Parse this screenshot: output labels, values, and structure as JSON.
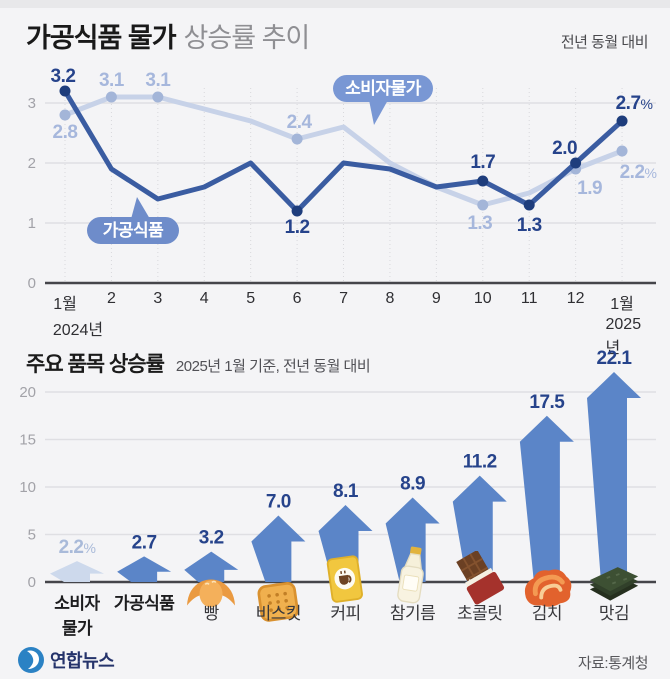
{
  "header": {
    "title_strong": "가공식품 물가",
    "title_light": "상승률 추이",
    "note": "전년 동월 대비"
  },
  "colors": {
    "background": "#f4f4f6",
    "consumer_line": "#c7d2e8",
    "consumer_dot": "#a3b5d8",
    "consumer_label": "#a6b7dc",
    "food_line": "#3a5ca1",
    "food_dot": "#1e3d7c",
    "food_label": "#26438b",
    "bar_fill": "#5b85c8",
    "bar_fill_light": "#cdd9ec",
    "callout_consumer": "#7997d4",
    "callout_food": "#6e8cca",
    "grid": "#dfdfe3",
    "axis": "#45454a"
  },
  "chart_data": [
    {
      "type": "line",
      "title": "가공식품 물가 상승률 추이",
      "subtitle": "전년 동월 대비",
      "x": [
        "1월",
        "2",
        "3",
        "4",
        "5",
        "6",
        "7",
        "8",
        "9",
        "10",
        "11",
        "12",
        "1월"
      ],
      "x_start_year": "2024년",
      "x_end_year": "2025년",
      "y_ticks": [
        0,
        1,
        2,
        3
      ],
      "ylim": [
        0,
        3.5
      ],
      "grid": "horizontal solid + vertical dotted",
      "legend_position": "callout bubbles on plot",
      "series": [
        {
          "name": "소비자물가",
          "values": [
            2.8,
            3.1,
            3.1,
            2.9,
            2.7,
            2.4,
            2.6,
            2.0,
            1.6,
            1.3,
            1.5,
            1.9,
            2.2
          ],
          "labeled_points": {
            "0": "2.8",
            "1": "3.1",
            "2": "3.1",
            "5": "2.4",
            "9": "1.3",
            "11": "1.9",
            "12": "2.2%"
          }
        },
        {
          "name": "가공식품",
          "values": [
            3.2,
            1.9,
            1.4,
            1.6,
            2.0,
            1.2,
            2.0,
            1.9,
            1.6,
            1.7,
            1.3,
            2.0,
            2.7
          ],
          "labeled_points": {
            "0": "3.2",
            "5": "1.2",
            "9": "1.7",
            "10": "1.3",
            "11": "2.0",
            "12": "2.7%"
          }
        }
      ]
    },
    {
      "type": "bar",
      "title": "주요 품목 상승률",
      "subtitle": "2025년 1월 기준, 전년 동월 대비",
      "y_ticks": [
        0,
        5,
        10,
        15,
        20
      ],
      "ylim": [
        0,
        22.5
      ],
      "bar_style": "upward arrows",
      "items": [
        {
          "label": "소비자 물가",
          "lines": [
            "소비자",
            "물가"
          ],
          "value": 2.2,
          "display": "2.2%",
          "light": true,
          "bold": true
        },
        {
          "label": "가공식품",
          "value": 2.7,
          "display": "2.7",
          "bold": true
        },
        {
          "label": "빵",
          "value": 3.2,
          "display": "3.2",
          "icon": "bread-icon"
        },
        {
          "label": "비스킷",
          "value": 7.0,
          "display": "7.0",
          "icon": "biscuit-icon"
        },
        {
          "label": "커피",
          "value": 8.1,
          "display": "8.1",
          "icon": "coffee-icon"
        },
        {
          "label": "참기름",
          "value": 8.9,
          "display": "8.9",
          "icon": "sesame-oil-icon"
        },
        {
          "label": "초콜릿",
          "value": 11.2,
          "display": "11.2",
          "icon": "chocolate-icon"
        },
        {
          "label": "김치",
          "value": 17.5,
          "display": "17.5",
          "icon": "kimchi-icon"
        },
        {
          "label": "맛김",
          "value": 22.1,
          "display": "22.1",
          "icon": "seaweed-icon"
        }
      ]
    }
  ],
  "footer": {
    "brand": "연합뉴스",
    "source": "자료:통계청"
  }
}
